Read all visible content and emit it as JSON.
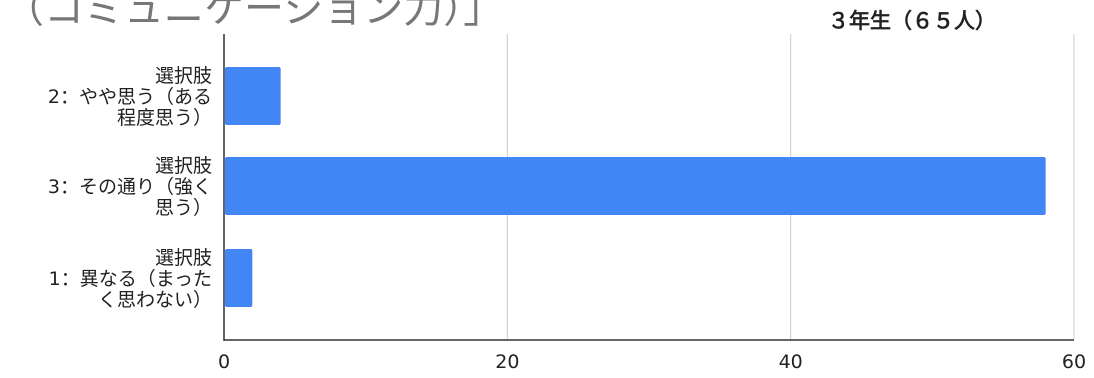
{
  "chart_data": {
    "type": "bar",
    "orientation": "horizontal",
    "title": "（コミュニケーション力）」",
    "series": [
      {
        "name": "３年生（６５人）",
        "color": "#4285f4",
        "values": [
          4,
          58,
          2
        ]
      }
    ],
    "categories": [
      [
        "選択肢",
        "2：やや思う（ある",
        "程度思う）"
      ],
      [
        "選択肢",
        "3：その通り（強く",
        "思う）"
      ],
      [
        "選択肢",
        "1：異なる（まった",
        "く思わない）"
      ]
    ],
    "xlim": [
      0,
      60
    ],
    "xticks": [
      "0",
      "20",
      "40",
      "60"
    ],
    "grid": true,
    "legend_position": "top-right",
    "colors": {
      "bar": "#4285f4",
      "grid": "#cccccc",
      "axis": "#333333",
      "text": "#222222",
      "title": "#777777"
    }
  }
}
